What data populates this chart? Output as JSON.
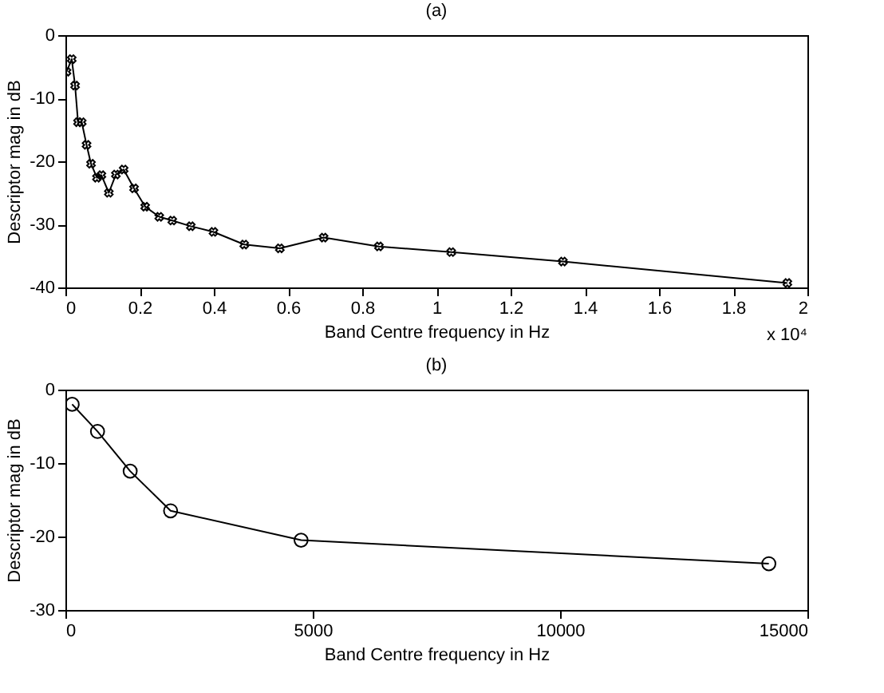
{
  "chart_data": [
    {
      "type": "line",
      "title": "(a)",
      "xlabel": "Band Centre frequency in Hz",
      "ylabel": "Descriptor mag in dB",
      "marker": "cross",
      "line_style": "solid",
      "grid": false,
      "legend": false,
      "x": [
        0.003,
        0.017,
        0.026,
        0.034,
        0.044,
        0.057,
        0.069,
        0.085,
        0.097,
        0.117,
        0.136,
        0.157,
        0.185,
        0.215,
        0.253,
        0.288,
        0.338,
        0.399,
        0.482,
        0.578,
        0.696,
        0.845,
        1.04,
        1.341,
        1.946
      ],
      "series": [
        {
          "color": "#000000",
          "values": [
            -5.8,
            -3.8,
            -8,
            -13.8,
            -13.8,
            -17.4,
            -20.4,
            -22.6,
            -22.2,
            -25,
            -22.1,
            -21.3,
            -24.3,
            -27.2,
            -28.8,
            -29.4,
            -30.3,
            -31.2,
            -33.2,
            -33.8,
            -32.1,
            -33.5,
            -34.4,
            -35.9,
            -39.3
          ]
        }
      ],
      "xlim": [
        0,
        2
      ],
      "xticks": [
        0,
        0.2,
        0.4,
        0.6,
        0.8,
        1,
        1.2,
        1.4,
        1.6,
        1.8,
        2
      ],
      "ylim": [
        -40,
        0
      ],
      "yticks": [
        -40,
        -30,
        -20,
        -10,
        0
      ],
      "annotations": [
        "x 10⁴"
      ]
    },
    {
      "type": "line",
      "title": "(b)",
      "xlabel": "Band Centre frequency in Hz",
      "ylabel": "Descriptor mag in dB",
      "marker": "circle",
      "line_style": "solid",
      "grid": false,
      "legend": false,
      "x": [
        136,
        649,
        1309,
        2126,
        4764,
        14220
      ],
      "series": [
        {
          "color": "#000000",
          "values": [
            -2.0,
            -5.7,
            -11.1,
            -16.5,
            -20.5,
            -23.7
          ]
        }
      ],
      "xlim": [
        0,
        15000
      ],
      "xticks": [
        0,
        5000,
        10000,
        15000
      ],
      "ylim": [
        -30,
        0
      ],
      "yticks": [
        -30,
        -20,
        -10,
        0
      ]
    }
  ]
}
